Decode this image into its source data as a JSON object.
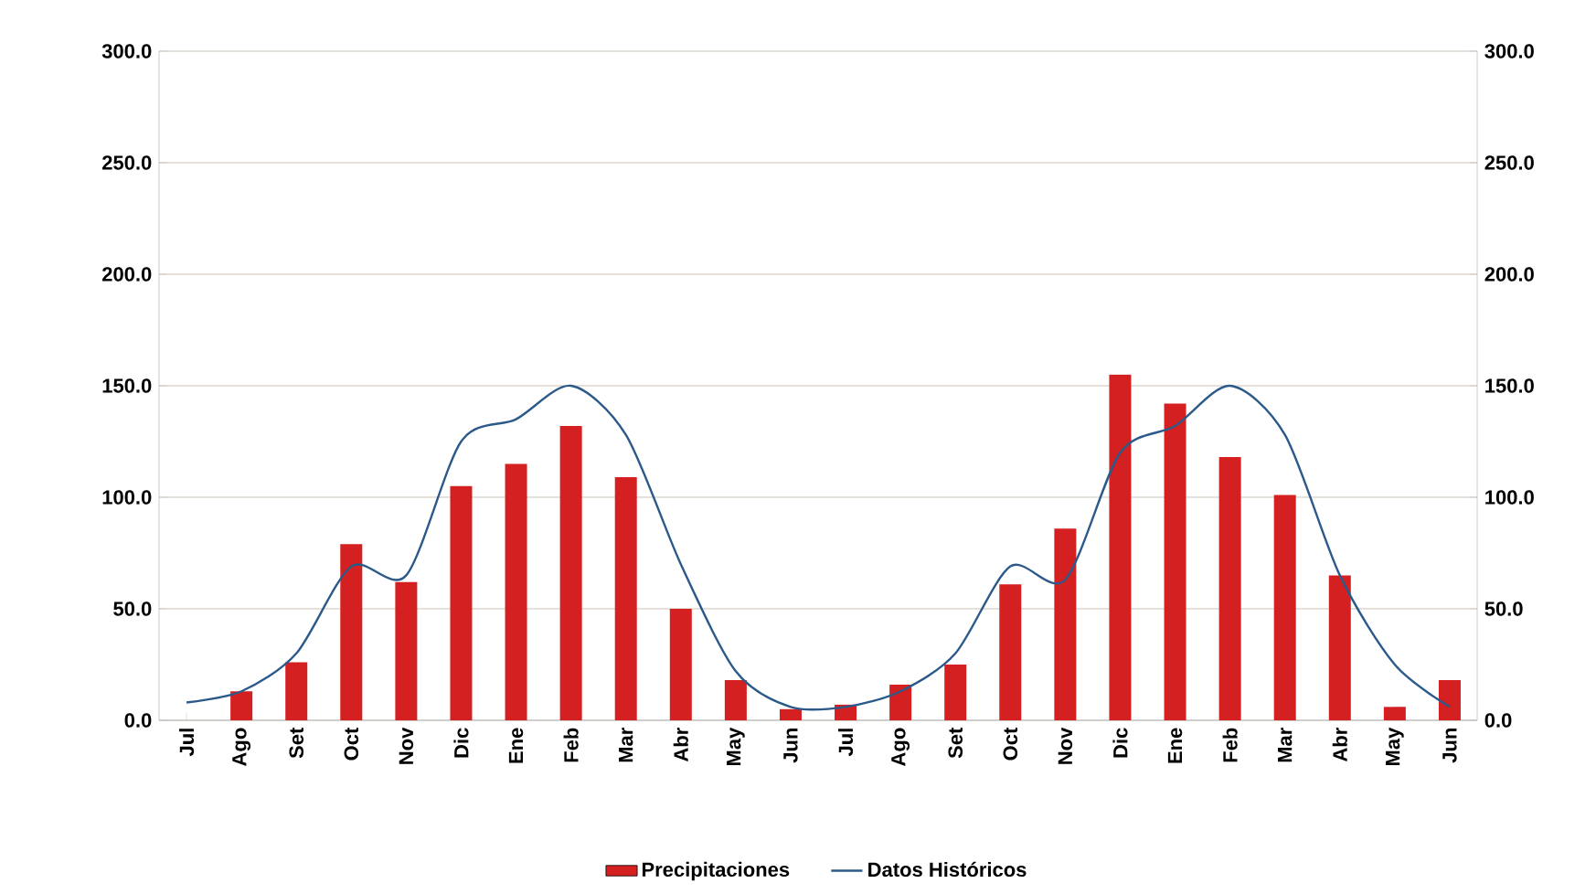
{
  "chart_data": {
    "type": "bar",
    "categories": [
      "Jul",
      "Ago",
      "Set",
      "Oct",
      "Nov",
      "Dic",
      "Ene",
      "Feb",
      "Mar",
      "Abr",
      "May",
      "Jun",
      "Jul",
      "Ago",
      "Set",
      "Oct",
      "Nov",
      "Dic",
      "Ene",
      "Feb",
      "Mar",
      "Abr",
      "May",
      "Jun"
    ],
    "series": [
      {
        "name": "Precipitaciones",
        "color": "#d42020",
        "values": [
          null,
          13,
          26,
          79,
          62,
          105,
          115,
          132,
          109,
          50,
          18,
          5,
          7,
          16,
          25,
          61,
          86,
          155,
          142,
          118,
          101,
          65,
          6,
          18
        ]
      },
      {
        "name": "Datos Históricos",
        "type": "line",
        "color": "#2b5a8a",
        "values": [
          8,
          13,
          30,
          69,
          65,
          125,
          135,
          150,
          128,
          70,
          22,
          6,
          6,
          13,
          30,
          69,
          63,
          120,
          132,
          150,
          128,
          65,
          25,
          6
        ]
      }
    ],
    "ylim": [
      0,
      300
    ],
    "yticks": [
      {
        "value": 0,
        "label": "0.0"
      },
      {
        "value": 50,
        "label": "50.0"
      },
      {
        "value": 100,
        "label": "100.0"
      },
      {
        "value": 150,
        "label": "150.0"
      },
      {
        "value": 200,
        "label": "200.0"
      },
      {
        "value": 250,
        "label": "250.0"
      },
      {
        "value": 300,
        "label": "300.0"
      }
    ],
    "y2lim": [
      0,
      300
    ],
    "y2ticks": [
      {
        "value": 0,
        "label": "0.0"
      },
      {
        "value": 50,
        "label": "50.0"
      },
      {
        "value": 100,
        "label": "100.0"
      },
      {
        "value": 150,
        "label": "150.0"
      },
      {
        "value": 200,
        "label": "200.0"
      },
      {
        "value": 250,
        "label": "250.0"
      },
      {
        "value": 300,
        "label": "300.0"
      }
    ],
    "grid": "y",
    "legend": "bottom"
  }
}
